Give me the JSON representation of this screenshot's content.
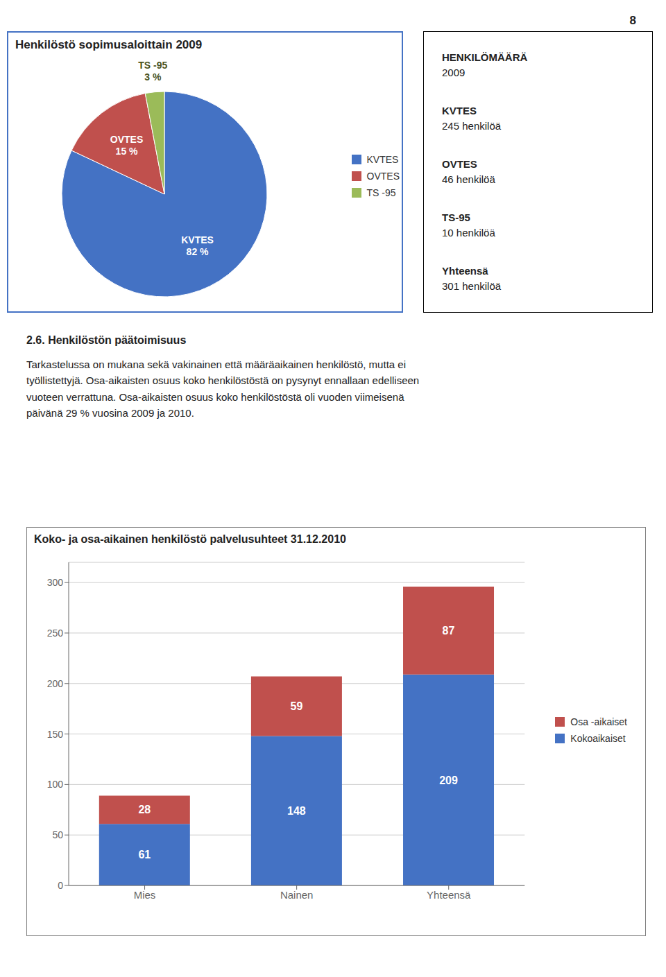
{
  "chart_data": [
    {
      "type": "pie",
      "title": "Henkilöstö sopimusaloittain 2009",
      "categories": [
        "KVTES",
        "OVTES",
        "TS -95"
      ],
      "values": [
        82,
        15,
        3
      ],
      "value_labels": [
        "82 %",
        "15 %",
        "3 %"
      ],
      "colors": [
        "#4472C4",
        "#C0504D",
        "#9BBB59"
      ],
      "data_labels": true,
      "legend": "right"
    },
    {
      "type": "bar",
      "title": "Koko- ja osa-aikainen henkilöstö palvelusuhteet 31.12.2010",
      "categories": [
        "Mies",
        "Nainen",
        "Yhteensä"
      ],
      "series": [
        {
          "name": "Kokoaikaiset",
          "color": "#4472C4",
          "values": [
            61,
            148,
            209
          ]
        },
        {
          "name": "Osa -aikaiset",
          "color": "#C0504D",
          "values": [
            28,
            59,
            87
          ]
        }
      ],
      "stacked": true,
      "data_labels": true,
      "ylim": [
        0,
        320
      ],
      "yticks": [
        0,
        50,
        100,
        150,
        200,
        250,
        300
      ],
      "grid": true,
      "legend": "right"
    }
  ],
  "annotations": {
    "page_number": "8",
    "info_box": [
      [
        "HENKILÖMÄÄRÄ",
        "2009"
      ],
      [
        "KVTES",
        "245 henkilöä"
      ],
      [
        "OVTES",
        "46 henkilöä"
      ],
      [
        "TS-95",
        "10 henkilöä"
      ],
      [
        "Yhteensä",
        "301 henkilöä"
      ]
    ],
    "section_heading": "2.6. Henkilöstön päätoimisuus",
    "section_text": [
      "Tarkastelussa on mukana sekä vakinainen että määräaikainen henkilöstö, mutta ei",
      "työllistettyjä. Osa-aikaisten osuus koko henkilöstöstä on pysynyt ennallaan edelliseen",
      "vuoteen verrattuna. Osa-aikaisten osuus koko henkilöstöstä oli vuoden viimeisenä",
      "päivänä 29 % vuosina 2009 ja 2010."
    ]
  }
}
